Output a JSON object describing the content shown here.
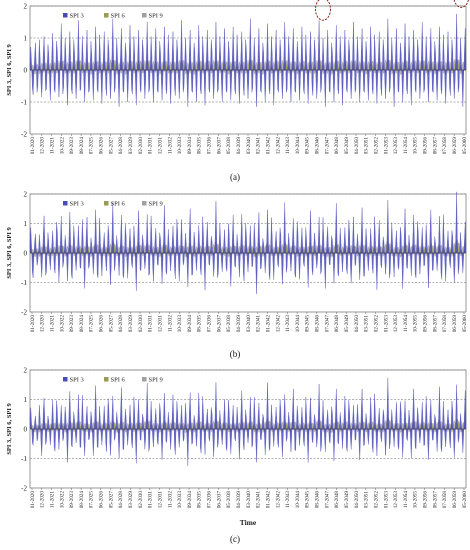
{
  "chart_data": [
    {
      "type": "area",
      "panel_label": "(a)",
      "ylabel": "SPI 3, SPI 6, SPI 9",
      "xlabel": "",
      "ylim": [
        -2,
        2
      ],
      "yticks": [
        "-2",
        "-1",
        "0",
        "1",
        "2"
      ],
      "legend": {
        "position": "top-left",
        "entries": [
          "SPI 3",
          "SPI 6",
          "SPI 9"
        ]
      },
      "series_colors": [
        "#4a4ab8",
        "#9a9a55",
        "#a0a0a0"
      ],
      "x_tick_labels": [
        "01-2020",
        "12-2020",
        "11-2021",
        "10-2022",
        "09-2023",
        "08-2024",
        "07-2025",
        "06-2026",
        "05-2027",
        "04-2028",
        "03-2029",
        "02-2030",
        "01-2031",
        "12-2031",
        "11-2032",
        "10-2033",
        "09-2034",
        "08-2035",
        "07-2036",
        "06-2037",
        "05-2038",
        "04-2039",
        "03-2040",
        "02-2041",
        "01-2042",
        "12-2042",
        "11-2043",
        "10-2044",
        "09-2045",
        "08-2046",
        "07-2047",
        "06-2048",
        "05-2049",
        "04-2050",
        "03-2051",
        "02-2052",
        "01-2053",
        "12-2053",
        "11-2054",
        "10-2055",
        "09-2056",
        "08-2057",
        "07-2058",
        "06-2059",
        "05-2060"
      ],
      "highlight_circles": [
        {
          "x": "03-2047",
          "y": 1.9
        },
        {
          "x": "02-2060",
          "y": 2.3
        }
      ],
      "series": [
        {
          "name": "SPI 3",
          "values": [
            0.35,
            0.72,
            0.2,
            -0.55,
            -0.78,
            -0.1,
            0.45,
            0.85,
            0.15,
            -0.7,
            -0.5,
            0.15,
            0.95,
            0.35,
            -0.4,
            -0.85,
            -0.2,
            0.55,
            1.05,
            0.3,
            -0.65,
            -0.6,
            0.1,
            0.8,
            0.5,
            -0.3,
            -0.95,
            -0.25,
            0.5,
            1.15,
            0.25,
            -0.6,
            -0.7,
            0.05,
            0.9,
            0.6,
            -0.2,
            -0.85,
            -0.35,
            0.45,
            1.45,
            0.4,
            -0.75,
            -0.55,
            0.2,
            1.0,
            0.45,
            -0.35,
            -1.1,
            -0.2,
            0.55,
            1.2,
            0.3,
            -0.6,
            -0.75,
            0.1,
            0.95,
            0.55,
            -0.3,
            -0.9,
            -0.3,
            0.5,
            1.55,
            0.35,
            -0.65,
            -0.6,
            0.15,
            1.05,
            0.4,
            -0.4,
            -1.0,
            -0.15,
            0.6,
            1.25,
            0.2,
            -0.7,
            -0.65,
            0.05,
            0.9,
            0.5,
            -0.25,
            -0.95,
            -0.3,
            0.45,
            1.35,
            0.4,
            -0.6,
            -0.7,
            0.1,
            1.1,
            0.45,
            -0.35,
            -1.05,
            -0.2,
            0.5,
            1.2,
            0.3,
            -0.55,
            -0.8,
            0.15,
            0.95,
            0.6,
            -0.3,
            -0.9,
            -0.35,
            0.55,
            1.6,
            0.35,
            -0.7,
            -0.55,
            0.2,
            1.0,
            0.4,
            -0.4,
            -1.15,
            -0.2,
            0.6,
            1.3,
            0.25,
            -0.65,
            -0.7,
            0.05,
            0.85,
            0.55,
            -0.25,
            -1.0,
            -0.3,
            0.5,
            1.4,
            0.4,
            -0.6,
            -0.75,
            0.1,
            1.05,
            0.5,
            -0.35,
            -1.1,
            -0.15,
            0.55,
            1.25,
            0.3,
            -0.6,
            -0.7,
            0.15,
            0.95,
            0.6,
            -0.3,
            -0.9,
            -0.35,
            0.5,
            1.5,
            0.35,
            -0.7,
            -0.6,
            0.2,
            1.05,
            0.45,
            -0.4,
            -1.0,
            -0.2,
            0.6,
            1.3,
            0.25,
            -0.65,
            -0.7,
            0.1,
            0.9,
            0.55,
            -0.3,
            -0.95,
            -0.3,
            0.45,
            1.35,
            0.4,
            -0.6,
            -0.75,
            0.15,
            1.1,
            0.45,
            -0.35,
            -1.05,
            -0.2,
            0.5,
            1.2,
            0.3,
            -0.55,
            -0.8,
            0.1,
            0.95,
            0.6,
            -0.3,
            -0.9,
            -0.35,
            0.55,
            1.55,
            0.35,
            -0.7,
            -0.55,
            0.2,
            1.0,
            0.4,
            -0.4,
            -1.15,
            -0.2,
            0.6,
            1.25,
            0.25,
            -0.65,
            -0.7,
            0.05,
            0.85,
            0.55,
            -0.25,
            -1.0,
            -0.3,
            0.5,
            1.4,
            0.4,
            -0.6,
            -0.75,
            0.1,
            1.05,
            0.5,
            -0.35,
            -1.1,
            -0.15,
            0.55,
            1.25,
            0.3,
            -0.6,
            -0.7,
            0.15,
            0.95,
            0.6,
            -0.3,
            -0.9,
            -0.35,
            0.5,
            1.5,
            0.35,
            -0.7,
            -0.6,
            0.2,
            1.05,
            0.45,
            -0.4,
            -1.0,
            -0.2,
            0.6,
            1.3,
            0.25,
            -0.65,
            -0.7,
            0.1,
            0.9,
            0.55,
            -0.3,
            -0.95,
            -0.3,
            0.45,
            1.35,
            0.4,
            -0.6,
            -0.75,
            0.15,
            1.1,
            0.45,
            -0.35,
            -1.05,
            -0.2,
            0.5,
            1.2,
            0.3,
            -0.55,
            -0.8,
            0.1,
            0.95,
            0.6,
            -0.3,
            -0.9,
            -0.35,
            0.55,
            1.6,
            0.35,
            -0.7,
            -0.55,
            0.2,
            1.0,
            0.4,
            -0.4,
            -1.15,
            -0.2,
            0.6,
            1.3,
            0.25,
            -0.65,
            -0.7,
            0.05,
            0.85,
            0.55,
            -0.25,
            -1.0,
            -0.3,
            0.5,
            1.45,
            0.4,
            -0.6,
            -0.75,
            0.1,
            1.05,
            0.5,
            -0.35,
            -1.1,
            -0.15,
            0.55,
            1.25,
            0.3,
            -0.6,
            -0.7,
            0.15,
            0.95,
            0.6,
            -0.3,
            -0.9,
            -0.35,
            0.5,
            1.5,
            0.35,
            -0.7,
            -0.6,
            0.2,
            1.05,
            0.45,
            -0.4,
            -1.0,
            -0.2,
            0.6,
            1.3,
            0.25,
            -0.65,
            -0.7,
            0.1,
            0.9,
            0.55,
            -0.3,
            -0.95,
            -0.3,
            0.45,
            1.35,
            0.4,
            -0.6,
            -0.75,
            0.15,
            1.1,
            0.45,
            -0.35,
            -1.05,
            -0.2,
            0.5,
            1.2,
            0.3,
            -0.55,
            -0.8,
            0.1,
            0.95,
            0.6,
            -0.3,
            -0.9,
            -0.35,
            0.55,
            1.55,
            0.35,
            -0.7,
            -0.55,
            0.2,
            1.0,
            0.4,
            -0.4,
            -1.15,
            -0.2,
            0.6,
            1.25,
            0.25,
            -0.65,
            -0.7,
            0.05,
            0.85,
            0.55,
            -0.25,
            -1.0,
            -0.3,
            0.5,
            1.4,
            0.4,
            -0.6,
            -0.75,
            0.1,
            1.05,
            0.5,
            -0.35,
            -1.1,
            -0.15,
            0.55,
            1.25,
            0.3,
            -0.6,
            -0.7,
            0.15,
            0.95,
            0.6,
            -0.3,
            -0.9,
            -0.35,
            0.5,
            1.5,
            0.35,
            -0.7,
            -0.6,
            0.2,
            1.05,
            0.45,
            -0.4,
            -1.0,
            -0.2,
            0.6,
            1.3,
            0.25,
            -0.65,
            -0.7,
            0.1,
            0.9,
            0.55,
            -0.3,
            -0.95,
            -0.3,
            0.45,
            1.35,
            0.4,
            -0.6,
            -0.75,
            0.15,
            1.1,
            0.45,
            -0.35,
            -1.05,
            -0.2,
            0.5,
            1.2,
            0.3,
            -0.55,
            -0.8,
            0.1,
            0.95,
            0.6,
            -0.3,
            -0.9,
            -0.35,
            0.55,
            1.6,
            0.35,
            -0.7,
            -0.55,
            0.2,
            1.0,
            0.4,
            -0.4,
            -1.15,
            -0.2,
            0.6,
            1.3,
            0.25,
            -0.65,
            -0.7,
            0.05,
            0.85,
            0.55,
            -0.25,
            -1.0,
            -0.3,
            0.5,
            1.45,
            0.4,
            -0.6,
            -0.75,
            0.1,
            1.05,
            0.5,
            -0.35,
            -1.1,
            -0.15,
            0.55,
            1.25,
            0.3,
            -0.6,
            -0.7,
            0.15,
            0.95,
            0.6,
            -0.3,
            -0.9,
            -0.35,
            0.5,
            1.5,
            0.35,
            -0.7,
            -0.6,
            0.2,
            1.05,
            0.45,
            -0.4,
            -1.0,
            -0.2,
            0.6,
            1.3,
            0.25,
            -0.65,
            -0.7,
            0.1,
            0.9,
            0.55,
            -0.3,
            -0.95,
            -0.3,
            0.45,
            1.35,
            0.4,
            -0.6,
            -0.75,
            0.15,
            1.1,
            0.45,
            -0.35,
            -1.05,
            -0.2,
            0.5,
            1.2,
            0.3,
            -0.55,
            -0.8,
            0.1,
            0.95,
            0.6,
            -0.3,
            -0.9,
            -0.35,
            0.55,
            1.75,
            0.35,
            -0.7,
            -0.55,
            0.2,
            1.0,
            0.4,
            -0.4,
            -1.15,
            -0.2,
            0.6,
            1.3,
            0.25
          ]
        },
        {
          "name": "SPI 6",
          "values": "derived"
        },
        {
          "name": "SPI 9",
          "values": "derived"
        }
      ]
    },
    {
      "type": "area",
      "panel_label": "(b)",
      "ylabel": "SPI 3, SPI 6, SPI 9",
      "xlabel": "",
      "ylim": [
        -2,
        2
      ],
      "yticks": [
        "-2",
        "-1",
        "0",
        "1",
        "2"
      ],
      "legend": {
        "position": "top-left",
        "entries": [
          "SPI 3",
          "SPI 6",
          "SPI 9"
        ]
      },
      "series_colors": [
        "#4a4ab8",
        "#9a9a55",
        "#a0a0a0"
      ],
      "x_tick_labels": [
        "01-2020",
        "12-2020",
        "11-2021",
        "10-2022",
        "09-2023",
        "08-2024",
        "07-2025",
        "06-2026",
        "05-2027",
        "04-2028",
        "03-2029",
        "02-2030",
        "01-2031",
        "12-2031",
        "11-2032",
        "10-2033",
        "09-2034",
        "08-2035",
        "07-2036",
        "06-2037",
        "05-2038",
        "04-2039",
        "03-2040",
        "02-2041",
        "01-2042",
        "12-2042",
        "11-2043",
        "10-2044",
        "09-2045",
        "08-2046",
        "07-2047",
        "06-2048",
        "05-2049",
        "04-2050",
        "03-2051",
        "02-2052",
        "01-2053",
        "12-2053",
        "11-2054",
        "10-2055",
        "09-2056",
        "08-2057",
        "07-2058",
        "06-2059",
        "05-2060"
      ],
      "amplitude": 1.05
    },
    {
      "type": "area",
      "panel_label": "(c)",
      "ylabel": "SPI 3, SPI 6, SPI 9",
      "xlabel": "Time",
      "ylim": [
        -2,
        2
      ],
      "yticks": [
        "-2",
        "-1",
        "0",
        "1",
        "2"
      ],
      "legend": {
        "position": "top-left",
        "entries": [
          "SPI 3",
          "SPI 6",
          "SPI 9"
        ]
      },
      "series_colors": [
        "#4a4ab8",
        "#9a9a55",
        "#a0a0a0"
      ],
      "x_tick_labels": [
        "01-2020",
        "12-2020",
        "11-2021",
        "10-2022",
        "09-2023",
        "08-2024",
        "07-2025",
        "06-2026",
        "05-2027",
        "04-2028",
        "03-2029",
        "02-2030",
        "01-2031",
        "12-2031",
        "11-2032",
        "10-2033",
        "09-2034",
        "08-2035",
        "07-2036",
        "06-2037",
        "05-2038",
        "04-2039",
        "03-2040",
        "02-2041",
        "01-2042",
        "12-2042",
        "11-2043",
        "10-2044",
        "09-2045",
        "08-2046",
        "07-2047",
        "06-2048",
        "05-2049",
        "04-2050",
        "03-2051",
        "02-2052",
        "01-2053",
        "12-2053",
        "11-2054",
        "10-2055",
        "09-2056",
        "08-2057",
        "07-2058",
        "06-2059",
        "05-2060"
      ],
      "amplitude": 0.95
    }
  ]
}
